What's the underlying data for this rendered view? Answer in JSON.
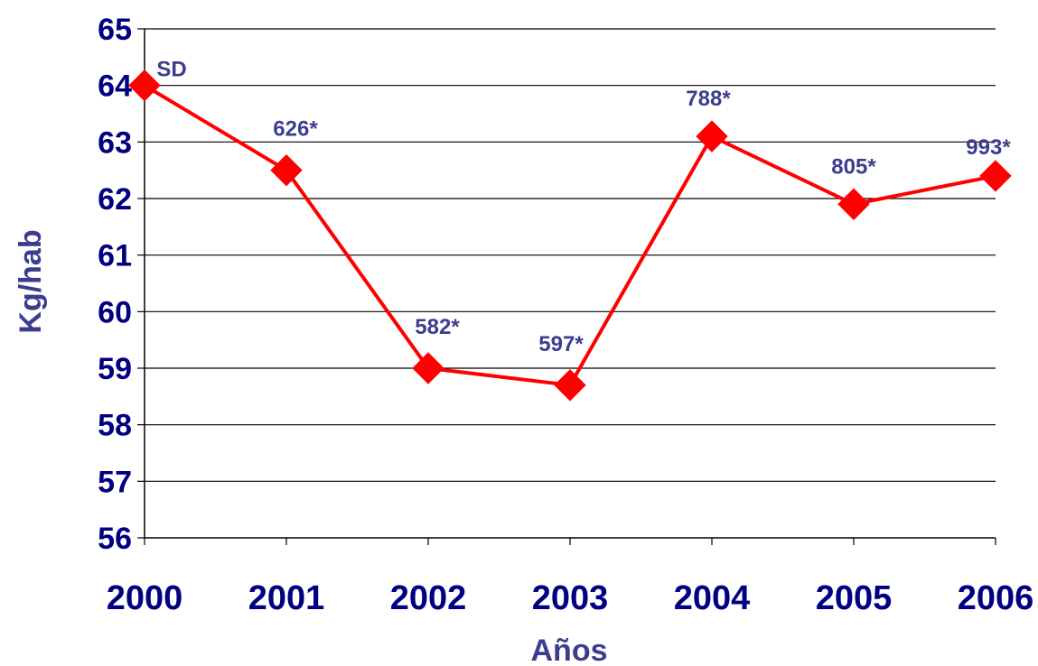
{
  "chart_data": {
    "type": "line",
    "title": "",
    "xlabel": "Años",
    "ylabel": "Kg/hab",
    "categories": [
      "2000",
      "2001",
      "2002",
      "2003",
      "2004",
      "2005",
      "2006"
    ],
    "series": [
      {
        "values": [
          64.0,
          62.5,
          59.0,
          58.7,
          63.1,
          61.9,
          62.4
        ],
        "data_labels": [
          "SD",
          "626*",
          "582*",
          "597*",
          "788*",
          "805*",
          "993*"
        ],
        "marker": "diamond"
      }
    ],
    "ylim": [
      56,
      65
    ],
    "yticks": [
      "56",
      "57",
      "58",
      "59",
      "60",
      "61",
      "62",
      "63",
      "64",
      "65"
    ],
    "grid": "horizontal",
    "legend": "none",
    "colors": {
      "line": "#ff0000",
      "tick_text": "#000080",
      "axis_title": "#3d3d8f",
      "data_label": "#3d3d8f",
      "grid": "#000000"
    }
  }
}
